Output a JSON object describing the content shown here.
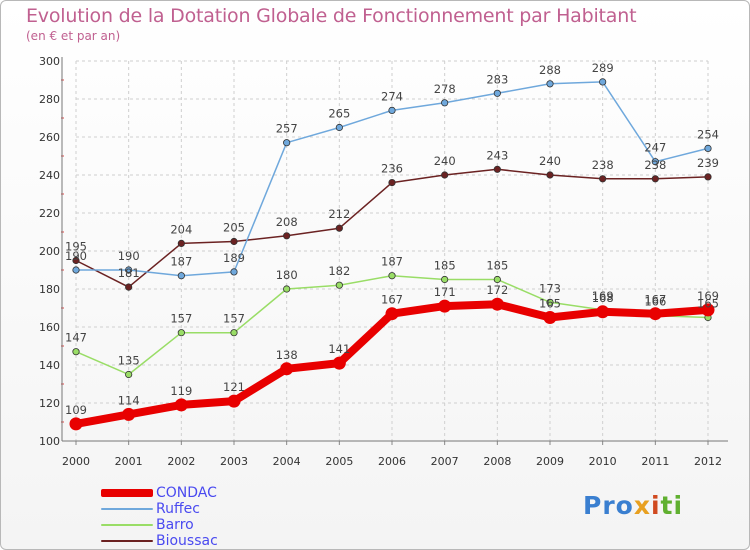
{
  "chart_data": {
    "type": "line",
    "title": "Evolution de la Dotation Globale de Fonctionnement par Habitant",
    "subtitle": "(en € et par an)",
    "xlabel": "",
    "ylabel": "",
    "x": [
      "2000",
      "2001",
      "2002",
      "2003",
      "2004",
      "2005",
      "2006",
      "2007",
      "2008",
      "2009",
      "2010",
      "2011",
      "2012"
    ],
    "ylim": [
      100,
      300
    ],
    "yticks": [
      100,
      120,
      140,
      160,
      180,
      200,
      220,
      240,
      260,
      280,
      300
    ],
    "grid": "horizontal dashed",
    "legend_position": "bottom-left",
    "series": [
      {
        "name": "CONDAC",
        "color": "#e80000",
        "values": [
          109,
          114,
          119,
          121,
          138,
          141,
          167,
          171,
          172,
          165,
          168,
          167,
          169
        ]
      },
      {
        "name": "Ruffec",
        "color": "#6fa8dc",
        "values": [
          190,
          190,
          187,
          189,
          257,
          265,
          274,
          278,
          283,
          288,
          289,
          247,
          254
        ]
      },
      {
        "name": "Barro",
        "color": "#99dd66",
        "values": [
          147,
          135,
          157,
          157,
          180,
          182,
          187,
          185,
          185,
          173,
          169,
          166,
          165
        ]
      },
      {
        "name": "Bioussac",
        "color": "#6b2222",
        "values": [
          195,
          181,
          204,
          205,
          208,
          212,
          236,
          240,
          243,
          240,
          238,
          238,
          239
        ]
      }
    ]
  },
  "branding": {
    "logo_text": "Proxiti",
    "p1": "Pro",
    "p2": "x",
    "p3": "i",
    "p4": "ti"
  }
}
